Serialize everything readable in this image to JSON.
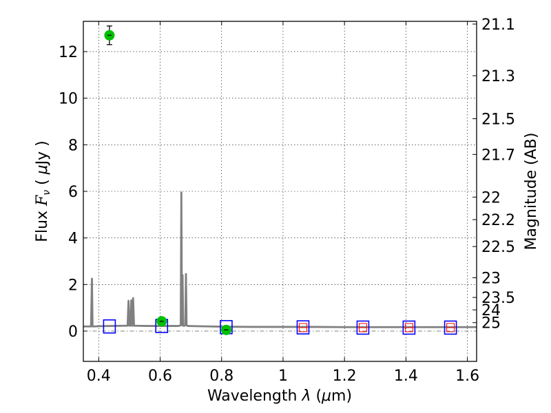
{
  "chart_data": {
    "type": "scatter",
    "title": "",
    "xlabel_parts": [
      "Wavelength  ",
      "λ",
      " (",
      "μ",
      "m)"
    ],
    "ylabel_parts": [
      "Flux  ",
      "F",
      "ν",
      "  ( ",
      "μ",
      "Jy )"
    ],
    "y2label": "Magnitude (AB)",
    "xlim": [
      0.35,
      1.63
    ],
    "ylim": [
      -1.3,
      13.3
    ],
    "grid": true,
    "xticks": [
      0.4,
      0.6,
      0.8,
      1.0,
      1.2,
      1.4,
      1.6
    ],
    "xtick_labels": [
      "0.4",
      "0.6",
      "0.8",
      "1",
      "1.2",
      "1.4",
      "1.6"
    ],
    "yticks": [
      0,
      2,
      4,
      6,
      8,
      10,
      12
    ],
    "ytick_labels": [
      "0",
      "2",
      "4",
      "6",
      "8",
      "10",
      "12"
    ],
    "y2ticks": [
      {
        "label": "21.1",
        "mag": 21.1
      },
      {
        "label": "21.3",
        "mag": 21.3
      },
      {
        "label": "21.5",
        "mag": 21.5
      },
      {
        "label": "21.7",
        "mag": 21.7
      },
      {
        "label": "22",
        "mag": 22.0
      },
      {
        "label": "22.2",
        "mag": 22.2
      },
      {
        "label": "22.5",
        "mag": 22.5
      },
      {
        "label": "23",
        "mag": 23.0
      },
      {
        "label": "23.5",
        "mag": 23.5
      },
      {
        "label": "24",
        "mag": 24.0
      },
      {
        "label": "25",
        "mag": 25.0
      }
    ],
    "zero_line": {
      "y": 0,
      "style": "dashdot",
      "color": "#808080"
    },
    "series": [
      {
        "name": "model-spectrum",
        "kind": "line",
        "color": "#808080",
        "x": [
          0.35,
          0.375,
          0.378,
          0.38,
          0.382,
          0.385,
          0.4,
          0.44,
          0.48,
          0.494,
          0.497,
          0.5,
          0.503,
          0.506,
          0.509,
          0.512,
          0.515,
          0.52,
          0.56,
          0.6,
          0.64,
          0.66,
          0.667,
          0.669,
          0.671,
          0.673,
          0.675,
          0.677,
          0.679,
          0.682,
          0.684,
          0.686,
          0.688,
          0.69,
          0.72,
          0.8,
          0.9,
          1.0,
          1.1,
          1.2,
          1.3,
          1.4,
          1.5,
          1.63
        ],
        "y": [
          0.2,
          0.2,
          2.25,
          0.2,
          0.2,
          0.2,
          0.21,
          0.22,
          0.23,
          0.23,
          1.3,
          0.23,
          0.23,
          1.32,
          0.23,
          1.42,
          0.23,
          0.23,
          0.22,
          0.22,
          0.22,
          0.22,
          0.25,
          5.95,
          0.25,
          2.4,
          0.23,
          0.23,
          0.23,
          0.25,
          2.45,
          0.25,
          0.23,
          0.22,
          0.21,
          0.19,
          0.18,
          0.18,
          0.18,
          0.17,
          0.17,
          0.17,
          0.17,
          0.17
        ]
      },
      {
        "name": "observed-fluxes",
        "kind": "points",
        "color": "#00c000",
        "x": [
          0.435,
          0.605,
          0.815
        ],
        "y": [
          12.7,
          0.42,
          0.05
        ],
        "yerr": [
          0.4,
          0.12,
          0.12
        ]
      },
      {
        "name": "model-fluxes",
        "kind": "squares",
        "color": "#0000ff",
        "x": [
          0.435,
          0.605,
          0.815,
          1.065,
          1.26,
          1.41,
          1.545
        ],
        "y": [
          0.2,
          0.22,
          0.17,
          0.16,
          0.15,
          0.15,
          0.15
        ]
      },
      {
        "name": "upper-limits",
        "kind": "red-boxes",
        "color": "#ff0000",
        "x": [
          1.065,
          1.26,
          1.41,
          1.545
        ],
        "y": [
          0.15,
          0.15,
          0.15,
          0.15
        ]
      }
    ]
  }
}
